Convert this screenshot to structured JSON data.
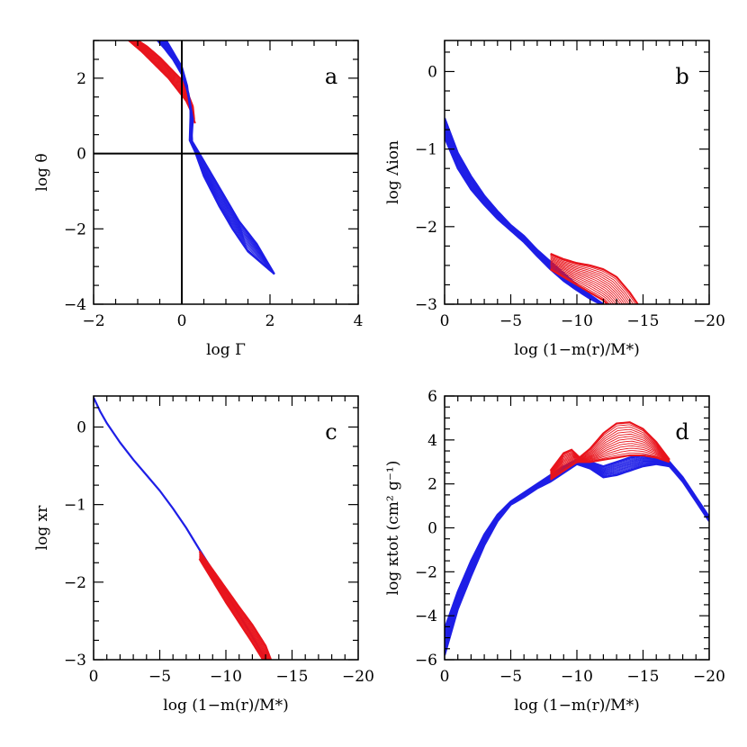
{
  "figure": {
    "title": ""
  },
  "colors": {
    "red": "#e8141c",
    "blue": "#1e1ee6",
    "axis": "#000000"
  },
  "chart_data": [
    {
      "panel": "a",
      "type": "line",
      "xlabel": "log Γ",
      "ylabel": "log θ",
      "xlim": [
        -2,
        4
      ],
      "ylim": [
        -4,
        3
      ],
      "xticks": [
        -2,
        0,
        2,
        4
      ],
      "yticks": [
        -4,
        -2,
        0,
        2
      ],
      "xtick_labels": [
        "−2",
        "0",
        "2",
        "4"
      ],
      "ytick_labels": [
        "−4",
        "−2",
        "0",
        "2"
      ],
      "reference_lines": {
        "x": 0,
        "y": 0
      },
      "series": [
        {
          "name": "red-upper",
          "color": "red",
          "x": [
            -1.0,
            -0.8,
            -0.5,
            -0.25,
            0.0,
            0.15,
            0.25,
            0.28
          ],
          "y": [
            3.0,
            2.85,
            2.55,
            2.25,
            1.95,
            1.55,
            1.25,
            0.9
          ]
        },
        {
          "name": "red-lower",
          "color": "red",
          "x": [
            -1.2,
            -0.9,
            -0.6,
            -0.3,
            -0.1,
            0.1,
            0.22,
            0.3
          ],
          "y": [
            3.0,
            2.7,
            2.35,
            2.0,
            1.7,
            1.4,
            1.1,
            0.8
          ]
        },
        {
          "name": "blue-upper",
          "color": "blue",
          "x": [
            -0.55,
            -0.4,
            -0.2,
            0.0,
            0.15,
            0.25,
            0.22,
            0.35,
            0.6,
            1.0,
            1.3,
            1.7,
            2.1
          ],
          "y": [
            3.0,
            2.8,
            2.5,
            2.1,
            1.6,
            0.9,
            0.35,
            0.1,
            -0.4,
            -1.2,
            -1.8,
            -2.4,
            -3.2
          ]
        },
        {
          "name": "blue-lower",
          "color": "blue",
          "x": [
            -0.35,
            -0.2,
            0.0,
            0.12,
            0.2,
            0.18,
            0.3,
            0.5,
            0.85,
            1.15,
            1.5,
            1.9,
            2.1
          ],
          "y": [
            3.0,
            2.7,
            2.3,
            1.8,
            1.1,
            0.35,
            0.05,
            -0.6,
            -1.4,
            -2.0,
            -2.6,
            -3.0,
            -3.2
          ]
        }
      ]
    },
    {
      "panel": "b",
      "type": "line",
      "xlabel": "log (1−m(r)/M*)",
      "ylabel": "log Λion",
      "xlim": [
        0,
        -20
      ],
      "ylim": [
        -3,
        0.4
      ],
      "xticks": [
        0,
        -5,
        -10,
        -15,
        -20
      ],
      "yticks": [
        -3,
        -2,
        -1,
        0
      ],
      "xtick_labels": [
        "0",
        "−5",
        "−10",
        "−15",
        "−20"
      ],
      "ytick_labels": [
        "−3",
        "−2",
        "−1",
        "0"
      ],
      "series": [
        {
          "name": "blue-upper",
          "color": "blue",
          "x": [
            0,
            -1,
            -2,
            -3,
            -4,
            -5,
            -6,
            -7,
            -8,
            -9,
            -10,
            -11,
            -12
          ],
          "y": [
            -0.6,
            -1.05,
            -1.35,
            -1.6,
            -1.8,
            -1.98,
            -2.12,
            -2.3,
            -2.45,
            -2.6,
            -2.75,
            -2.88,
            -3.0
          ]
        },
        {
          "name": "blue-lower",
          "color": "blue",
          "x": [
            0,
            -1,
            -2,
            -3,
            -4,
            -5,
            -6,
            -7,
            -8,
            -9,
            -10,
            -11,
            -11.8
          ],
          "y": [
            -0.85,
            -1.25,
            -1.52,
            -1.72,
            -1.9,
            -2.05,
            -2.2,
            -2.38,
            -2.55,
            -2.7,
            -2.82,
            -2.93,
            -3.0
          ]
        },
        {
          "name": "red-upper",
          "color": "red",
          "x": [
            -8,
            -9,
            -10,
            -11,
            -12,
            -13,
            -14,
            -14.6
          ],
          "y": [
            -2.35,
            -2.42,
            -2.47,
            -2.5,
            -2.55,
            -2.65,
            -2.85,
            -3.0
          ]
        },
        {
          "name": "red-lower",
          "color": "red",
          "x": [
            -8,
            -9,
            -10,
            -11,
            -12,
            -12.3
          ],
          "y": [
            -2.55,
            -2.65,
            -2.75,
            -2.85,
            -2.95,
            -3.0
          ]
        }
      ]
    },
    {
      "panel": "c",
      "type": "line",
      "xlabel": "log (1−m(r)/M*)",
      "ylabel": "log xr",
      "xlim": [
        0,
        -20
      ],
      "ylim": [
        -3,
        0.4
      ],
      "xticks": [
        0,
        -5,
        -10,
        -15,
        -20
      ],
      "yticks": [
        -3,
        -2,
        -1,
        0
      ],
      "xtick_labels": [
        "0",
        "−5",
        "−10",
        "−15",
        "−20"
      ],
      "ytick_labels": [
        "−3",
        "−2",
        "−1",
        "0"
      ],
      "series": [
        {
          "name": "blue",
          "color": "blue",
          "x": [
            0,
            -0.5,
            -1,
            -2,
            -3,
            -4,
            -5,
            -6,
            -7,
            -8,
            -9,
            -10,
            -11,
            -12,
            -13
          ],
          "y": [
            0.38,
            0.2,
            0.05,
            -0.2,
            -0.42,
            -0.62,
            -0.82,
            -1.05,
            -1.3,
            -1.58,
            -1.85,
            -2.13,
            -2.42,
            -2.7,
            -3.0
          ]
        },
        {
          "name": "red-upper",
          "color": "red",
          "x": [
            -8,
            -9,
            -10,
            -11,
            -12,
            -13,
            -13.4
          ],
          "y": [
            -1.6,
            -1.84,
            -2.08,
            -2.32,
            -2.55,
            -2.82,
            -3.0
          ]
        },
        {
          "name": "red-lower",
          "color": "red",
          "x": [
            -8,
            -9,
            -10,
            -11,
            -12,
            -12.8
          ],
          "y": [
            -1.7,
            -1.98,
            -2.26,
            -2.52,
            -2.78,
            -3.0
          ]
        }
      ]
    },
    {
      "panel": "d",
      "type": "line",
      "xlabel": "log (1−m(r)/M*)",
      "ylabel": "log κtot (cm² g⁻¹)",
      "xlim": [
        0,
        -20
      ],
      "ylim": [
        -6,
        6
      ],
      "xticks": [
        0,
        -5,
        -10,
        -15,
        -20
      ],
      "yticks": [
        -6,
        -4,
        -2,
        0,
        2,
        4,
        6
      ],
      "xtick_labels": [
        "0",
        "−5",
        "−10",
        "−15",
        "−20"
      ],
      "ytick_labels": [
        "−6",
        "−4",
        "−2",
        "0",
        "2",
        "4",
        "6"
      ],
      "series": [
        {
          "name": "blue-upper",
          "color": "blue",
          "x": [
            0,
            -1,
            -2,
            -3,
            -4,
            -5,
            -6,
            -7,
            -8,
            -9,
            -10,
            -11,
            -12,
            -13,
            -14,
            -15,
            -16,
            -17,
            -18,
            -19,
            -20
          ],
          "y": [
            -4.6,
            -2.9,
            -1.5,
            -0.3,
            0.6,
            1.2,
            1.6,
            2.0,
            2.4,
            2.8,
            3.1,
            3.0,
            2.8,
            3.0,
            3.2,
            3.3,
            3.2,
            3.0,
            2.3,
            1.4,
            0.5
          ]
        },
        {
          "name": "blue-lower",
          "color": "blue",
          "x": [
            0,
            -1,
            -2,
            -3,
            -4,
            -5,
            -6,
            -7,
            -8,
            -9,
            -10,
            -11,
            -12,
            -13,
            -14,
            -15,
            -16,
            -17,
            -18,
            -19,
            -20
          ],
          "y": [
            -5.8,
            -3.7,
            -2.2,
            -0.8,
            0.3,
            1.05,
            1.4,
            1.8,
            2.1,
            2.5,
            2.9,
            2.7,
            2.3,
            2.4,
            2.6,
            2.8,
            2.9,
            2.8,
            2.1,
            1.2,
            0.3
          ]
        },
        {
          "name": "red-upper",
          "color": "red",
          "x": [
            -8,
            -9,
            -9.6,
            -10.2,
            -11,
            -12,
            -13,
            -14,
            -15,
            -16,
            -17
          ],
          "y": [
            2.6,
            3.4,
            3.55,
            3.2,
            3.6,
            4.3,
            4.75,
            4.8,
            4.5,
            3.9,
            3.1
          ]
        },
        {
          "name": "red-lower",
          "color": "red",
          "x": [
            -8,
            -9,
            -10,
            -11,
            -12,
            -13,
            -14,
            -15,
            -16,
            -17
          ],
          "y": [
            2.2,
            2.6,
            3.0,
            3.0,
            3.1,
            3.2,
            3.3,
            3.3,
            3.2,
            3.0
          ]
        }
      ]
    }
  ]
}
